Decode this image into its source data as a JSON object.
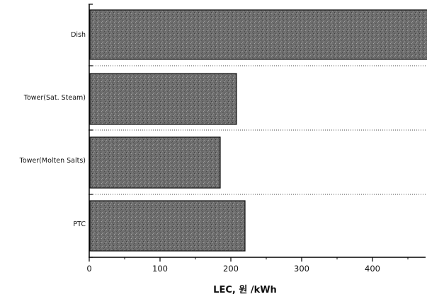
{
  "chart_data": {
    "type": "bar",
    "orientation": "horizontal",
    "categories": [
      "Dish",
      "Tower(Sat. Steam)",
      "Tower(Molten Salts)",
      "PTC"
    ],
    "values": [
      512,
      208,
      185,
      220
    ],
    "title": "",
    "xlabel": "LEC, 원 /kWh",
    "ylabel": "",
    "xlim": [
      0,
      550
    ],
    "xticks": [
      0,
      100,
      200,
      300,
      400,
      500
    ],
    "grid": "dotted separators between bars",
    "legend": "none",
    "bar_color": "#6e6e6e"
  }
}
